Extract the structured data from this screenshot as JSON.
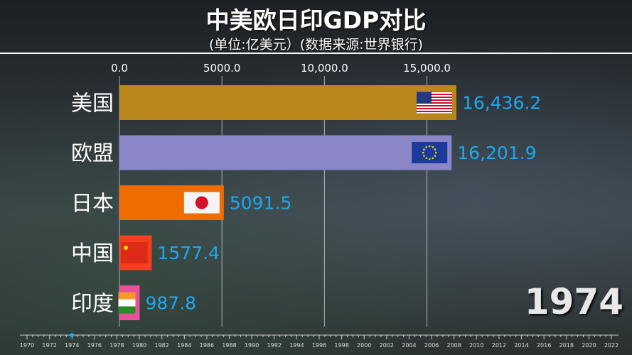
{
  "chart_data": {
    "type": "bar",
    "orientation": "horizontal",
    "title": "中美欧日印GDP对比",
    "subtitle": "(单位:亿美元）(数据来源:世界银行)",
    "categories": [
      "美国",
      "欧盟",
      "日本",
      "中国",
      "印度"
    ],
    "values": [
      16436.2,
      16201.9,
      5091.5,
      1577.4,
      987.8
    ],
    "value_labels": [
      "16,436.2",
      "16,201.9",
      "5091.5",
      "1577.4",
      "987.8"
    ],
    "colors": [
      "#b8861a",
      "#8a86c8",
      "#ef6c00",
      "#f04020",
      "#e8509a"
    ],
    "flag_icons": [
      "usa-flag-icon",
      "eu-flag-icon",
      "japan-flag-icon",
      "china-flag-icon",
      "india-flag-icon"
    ],
    "xlim": [
      0,
      16436.2
    ],
    "xticks": [
      0,
      5000,
      10000,
      15000
    ],
    "xtick_labels": [
      "0.0",
      "5000.0",
      "10,000.0",
      "15,000.0"
    ],
    "grid": true,
    "current_year": "1974",
    "timeline_years": [
      "1970",
      "1972",
      "1974",
      "1976",
      "1978",
      "1980",
      "1982",
      "1984",
      "1986",
      "1988",
      "1990",
      "1992",
      "1994",
      "1996",
      "1998",
      "2000",
      "2002",
      "2004",
      "2006",
      "2008",
      "2010",
      "2012",
      "2014",
      "2016",
      "2018",
      "2020",
      "2022"
    ]
  }
}
